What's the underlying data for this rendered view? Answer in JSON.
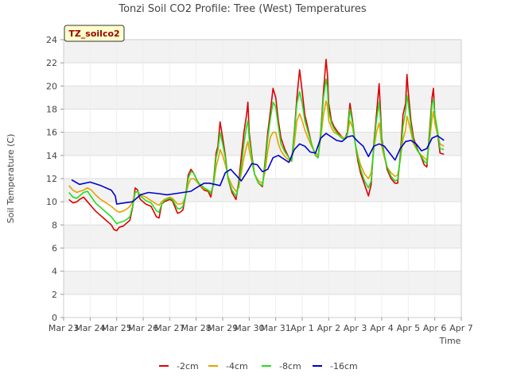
{
  "chart_data": {
    "type": "line",
    "title": "Tonzi Soil CO2 Profile: Tree (West) Temperatures",
    "xlabel": "Time",
    "ylabel": "Soil Temperature (C)",
    "station_label": "TZ_soilco2",
    "xlim": [
      0,
      15
    ],
    "ylim": [
      0,
      24
    ],
    "x_ticks": [
      {
        "value": 0,
        "label": "Mar 23"
      },
      {
        "value": 1,
        "label": "Mar 24"
      },
      {
        "value": 2,
        "label": "Mar 25"
      },
      {
        "value": 3,
        "label": "Mar 26"
      },
      {
        "value": 4,
        "label": "Mar 27"
      },
      {
        "value": 5,
        "label": "Mar 28"
      },
      {
        "value": 6,
        "label": "Mar 29"
      },
      {
        "value": 7,
        "label": "Mar 30"
      },
      {
        "value": 8,
        "label": "Mar 31"
      },
      {
        "value": 9,
        "label": "Apr 1"
      },
      {
        "value": 10,
        "label": "Apr 2"
      },
      {
        "value": 11,
        "label": "Apr 3"
      },
      {
        "value": 12,
        "label": "Apr 4"
      },
      {
        "value": 13,
        "label": "Apr 5"
      },
      {
        "value": 14,
        "label": "Apr 6"
      },
      {
        "value": 15,
        "label": "Apr 7"
      }
    ],
    "y_ticks": [
      0,
      2,
      4,
      6,
      8,
      10,
      12,
      14,
      16,
      18,
      20,
      22,
      24
    ],
    "grid": true,
    "legend": "bottom",
    "series": [
      {
        "name": "-2cm",
        "color": "#dd0000",
        "x": [
          0.2,
          0.35,
          0.5,
          0.6,
          0.75,
          0.9,
          1.05,
          1.2,
          1.4,
          1.6,
          1.8,
          1.9,
          2.0,
          2.1,
          2.25,
          2.4,
          2.5,
          2.6,
          2.7,
          2.8,
          2.85,
          2.9,
          3.0,
          3.1,
          3.3,
          3.5,
          3.6,
          3.7,
          3.8,
          3.9,
          4.0,
          4.1,
          4.3,
          4.4,
          4.5,
          4.6,
          4.7,
          4.8,
          4.9,
          5.0,
          5.1,
          5.3,
          5.45,
          5.55,
          5.65,
          5.75,
          5.82,
          5.9,
          6.0,
          6.1,
          6.2,
          6.35,
          6.5,
          6.6,
          6.7,
          6.8,
          6.9,
          6.95,
          7.0,
          7.1,
          7.2,
          7.35,
          7.5,
          7.6,
          7.7,
          7.8,
          7.9,
          8.0,
          8.1,
          8.2,
          8.35,
          8.5,
          8.6,
          8.7,
          8.8,
          8.9,
          9.0,
          9.1,
          9.2,
          9.35,
          9.5,
          9.6,
          9.7,
          9.8,
          9.9,
          9.95,
          10.0,
          10.1,
          10.2,
          10.35,
          10.5,
          10.6,
          10.7,
          10.8,
          10.9,
          11.0,
          11.1,
          11.2,
          11.35,
          11.5,
          11.6,
          11.7,
          11.8,
          11.9,
          11.95,
          12.0,
          12.1,
          12.2,
          12.35,
          12.5,
          12.6,
          12.7,
          12.8,
          12.9,
          12.95,
          13.0,
          13.1,
          13.2,
          13.35,
          13.5,
          13.6,
          13.7,
          13.8,
          13.9,
          13.95,
          14.0,
          14.1,
          14.2,
          14.35
        ],
        "values": [
          10.2,
          9.9,
          10.0,
          10.2,
          10.4,
          10.0,
          9.6,
          9.2,
          8.8,
          8.4,
          8.0,
          7.6,
          7.5,
          7.8,
          7.9,
          8.2,
          8.4,
          9.5,
          11.2,
          11.0,
          10.4,
          10.2,
          10.0,
          9.8,
          9.6,
          8.7,
          8.6,
          9.8,
          10.0,
          10.1,
          10.2,
          10.1,
          9.0,
          9.1,
          9.3,
          10.5,
          12.3,
          12.8,
          12.5,
          12.0,
          11.5,
          11.0,
          10.9,
          10.4,
          11.6,
          14.2,
          14.8,
          16.9,
          15.5,
          14.0,
          12.0,
          10.8,
          10.2,
          11.6,
          13.8,
          16.0,
          17.5,
          18.6,
          16.0,
          14.0,
          12.4,
          11.6,
          11.3,
          13.5,
          16.0,
          17.8,
          19.8,
          19.0,
          17.0,
          15.5,
          14.5,
          13.8,
          13.5,
          16.0,
          19.0,
          21.4,
          19.5,
          17.5,
          16.5,
          15.0,
          14.0,
          13.8,
          16.0,
          19.5,
          22.3,
          21.0,
          18.5,
          17.0,
          16.5,
          16.0,
          15.6,
          15.4,
          16.0,
          18.5,
          17.0,
          15.0,
          13.5,
          12.5,
          11.5,
          10.5,
          11.5,
          15.0,
          17.5,
          20.2,
          18.0,
          15.5,
          14.0,
          12.8,
          12.0,
          11.6,
          11.6,
          14.0,
          17.5,
          18.5,
          21.0,
          19.5,
          17.0,
          15.5,
          14.5,
          13.8,
          13.2,
          13.0,
          16.0,
          19.0,
          19.8,
          17.5,
          16.0,
          14.2,
          14.1
        ]
      },
      {
        "name": "-4cm",
        "color": "#e8a000",
        "x": [
          0.2,
          0.35,
          0.5,
          0.6,
          0.75,
          0.9,
          1.05,
          1.2,
          1.4,
          1.6,
          1.8,
          1.9,
          2.0,
          2.1,
          2.25,
          2.4,
          2.5,
          2.6,
          2.7,
          2.8,
          2.85,
          2.9,
          3.0,
          3.1,
          3.3,
          3.5,
          3.6,
          3.7,
          3.8,
          3.9,
          4.0,
          4.1,
          4.3,
          4.4,
          4.5,
          4.6,
          4.7,
          4.8,
          4.9,
          5.0,
          5.1,
          5.3,
          5.45,
          5.55,
          5.65,
          5.75,
          5.82,
          5.9,
          6.0,
          6.1,
          6.2,
          6.35,
          6.5,
          6.6,
          6.7,
          6.8,
          6.9,
          6.95,
          7.0,
          7.1,
          7.2,
          7.35,
          7.5,
          7.6,
          7.7,
          7.8,
          7.9,
          8.0,
          8.1,
          8.2,
          8.35,
          8.5,
          8.6,
          8.7,
          8.8,
          8.9,
          9.0,
          9.1,
          9.2,
          9.35,
          9.5,
          9.6,
          9.7,
          9.8,
          9.9,
          9.95,
          10.0,
          10.1,
          10.2,
          10.35,
          10.5,
          10.6,
          10.7,
          10.8,
          10.9,
          11.0,
          11.1,
          11.2,
          11.35,
          11.5,
          11.6,
          11.7,
          11.8,
          11.9,
          11.95,
          12.0,
          12.1,
          12.2,
          12.35,
          12.5,
          12.6,
          12.7,
          12.8,
          12.9,
          12.95,
          13.0,
          13.1,
          13.2,
          13.35,
          13.5,
          13.6,
          13.7,
          13.8,
          13.9,
          13.95,
          14.0,
          14.1,
          14.2,
          14.35
        ],
        "values": [
          11.4,
          11.0,
          10.8,
          10.9,
          11.0,
          11.2,
          11.0,
          10.6,
          10.2,
          9.9,
          9.6,
          9.4,
          9.2,
          9.1,
          9.2,
          9.4,
          9.6,
          10.0,
          10.8,
          10.9,
          10.7,
          10.6,
          10.5,
          10.4,
          10.1,
          9.8,
          9.7,
          10.0,
          10.2,
          10.3,
          10.4,
          10.3,
          9.8,
          9.8,
          9.9,
          10.5,
          11.5,
          12.0,
          12.0,
          11.8,
          11.5,
          11.1,
          11.0,
          10.8,
          11.4,
          13.0,
          13.6,
          14.5,
          14.0,
          13.2,
          12.2,
          11.4,
          10.9,
          11.2,
          12.4,
          13.8,
          14.8,
          15.2,
          14.5,
          13.4,
          12.4,
          11.8,
          11.6,
          12.6,
          14.4,
          15.6,
          16.0,
          16.0,
          15.0,
          14.4,
          13.9,
          13.6,
          13.5,
          15.0,
          17.0,
          17.6,
          17.0,
          16.2,
          15.6,
          14.8,
          14.2,
          14.0,
          15.5,
          17.5,
          18.7,
          18.3,
          17.0,
          16.4,
          16.0,
          15.8,
          15.6,
          15.5,
          15.8,
          17.0,
          16.4,
          15.0,
          14.0,
          13.2,
          12.4,
          12.0,
          12.5,
          14.5,
          16.0,
          16.8,
          16.0,
          14.8,
          13.8,
          13.0,
          12.5,
          12.2,
          12.3,
          13.6,
          15.4,
          16.2,
          17.4,
          17.0,
          16.0,
          15.0,
          14.4,
          14.0,
          13.8,
          13.6,
          15.2,
          17.2,
          17.8,
          16.8,
          15.8,
          15.0,
          14.8
        ]
      },
      {
        "name": "-8cm",
        "color": "#22dd22",
        "x": [
          0.2,
          0.35,
          0.5,
          0.6,
          0.75,
          0.9,
          1.05,
          1.2,
          1.4,
          1.6,
          1.8,
          1.9,
          2.0,
          2.1,
          2.25,
          2.4,
          2.5,
          2.6,
          2.7,
          2.8,
          2.85,
          2.9,
          3.0,
          3.1,
          3.3,
          3.5,
          3.6,
          3.7,
          3.8,
          3.9,
          4.0,
          4.1,
          4.3,
          4.4,
          4.5,
          4.6,
          4.7,
          4.8,
          4.9,
          5.0,
          5.1,
          5.3,
          5.45,
          5.55,
          5.65,
          5.75,
          5.82,
          5.9,
          6.0,
          6.1,
          6.2,
          6.35,
          6.5,
          6.6,
          6.7,
          6.8,
          6.9,
          6.95,
          7.0,
          7.1,
          7.2,
          7.35,
          7.5,
          7.6,
          7.7,
          7.8,
          7.9,
          8.0,
          8.1,
          8.2,
          8.35,
          8.5,
          8.6,
          8.7,
          8.8,
          8.9,
          9.0,
          9.1,
          9.2,
          9.35,
          9.5,
          9.6,
          9.7,
          9.8,
          9.9,
          9.95,
          10.0,
          10.1,
          10.2,
          10.35,
          10.5,
          10.6,
          10.7,
          10.8,
          10.9,
          11.0,
          11.1,
          11.2,
          11.35,
          11.5,
          11.6,
          11.7,
          11.8,
          11.9,
          11.95,
          12.0,
          12.1,
          12.2,
          12.35,
          12.5,
          12.6,
          12.7,
          12.8,
          12.9,
          12.95,
          13.0,
          13.1,
          13.2,
          13.35,
          13.5,
          13.6,
          13.7,
          13.8,
          13.9,
          13.95,
          14.0,
          14.1,
          14.2,
          14.35
        ],
        "values": [
          10.8,
          10.4,
          10.3,
          10.5,
          10.8,
          10.9,
          10.4,
          9.9,
          9.5,
          9.1,
          8.7,
          8.4,
          8.1,
          8.2,
          8.3,
          8.5,
          8.7,
          9.6,
          10.8,
          10.9,
          10.6,
          10.5,
          10.3,
          10.1,
          9.9,
          9.2,
          9.1,
          9.8,
          10.1,
          10.2,
          10.3,
          10.2,
          9.4,
          9.4,
          9.6,
          10.5,
          12.0,
          12.6,
          12.5,
          12.0,
          11.6,
          11.2,
          11.0,
          10.7,
          11.5,
          13.8,
          14.5,
          16.0,
          15.0,
          13.8,
          12.0,
          11.0,
          10.5,
          11.3,
          13.0,
          15.0,
          16.5,
          17.0,
          15.5,
          13.8,
          12.4,
          11.6,
          11.4,
          13.2,
          15.5,
          17.2,
          18.6,
          18.2,
          16.5,
          15.0,
          14.3,
          13.8,
          13.5,
          15.8,
          18.5,
          19.5,
          18.5,
          17.0,
          16.2,
          15.0,
          14.0,
          13.8,
          15.8,
          19.0,
          20.6,
          19.8,
          17.8,
          16.8,
          16.3,
          15.8,
          15.5,
          15.4,
          15.8,
          18.0,
          16.8,
          15.0,
          13.8,
          12.8,
          11.8,
          11.2,
          11.8,
          14.8,
          17.0,
          18.6,
          17.2,
          15.2,
          14.0,
          13.0,
          12.2,
          11.8,
          11.9,
          13.8,
          16.5,
          17.8,
          19.2,
          18.5,
          16.5,
          15.2,
          14.4,
          13.9,
          13.5,
          13.3,
          15.6,
          18.5,
          18.8,
          17.5,
          16.2,
          14.6,
          14.5
        ]
      },
      {
        "name": "-16cm",
        "color": "#0000cc",
        "x": [
          0.3,
          0.6,
          1.0,
          1.4,
          1.8,
          1.95,
          2.0,
          2.3,
          2.6,
          2.9,
          3.2,
          3.6,
          3.9,
          4.2,
          4.5,
          4.8,
          5.0,
          5.3,
          5.5,
          5.7,
          5.9,
          6.1,
          6.3,
          6.5,
          6.7,
          6.9,
          7.1,
          7.3,
          7.5,
          7.7,
          7.9,
          8.1,
          8.3,
          8.5,
          8.7,
          8.9,
          9.1,
          9.3,
          9.5,
          9.7,
          9.9,
          10.1,
          10.3,
          10.5,
          10.7,
          10.9,
          11.1,
          11.3,
          11.5,
          11.7,
          11.9,
          12.1,
          12.3,
          12.5,
          12.7,
          12.9,
          13.1,
          13.3,
          13.5,
          13.7,
          13.9,
          14.1,
          14.35
        ],
        "values": [
          11.9,
          11.5,
          11.7,
          11.4,
          11.0,
          10.5,
          9.8,
          9.9,
          10.0,
          10.6,
          10.8,
          10.7,
          10.6,
          10.7,
          10.8,
          10.9,
          11.2,
          11.6,
          11.6,
          11.5,
          11.4,
          12.5,
          12.8,
          12.3,
          11.8,
          12.5,
          13.3,
          13.2,
          12.6,
          12.8,
          13.8,
          14.0,
          13.7,
          13.4,
          14.5,
          15.0,
          14.8,
          14.3,
          14.2,
          15.5,
          15.9,
          15.6,
          15.3,
          15.2,
          15.6,
          15.7,
          15.2,
          14.8,
          13.9,
          14.8,
          15.0,
          14.8,
          14.2,
          13.6,
          14.6,
          15.2,
          15.3,
          15.0,
          14.4,
          14.6,
          15.5,
          15.7,
          15.3
        ]
      }
    ]
  }
}
